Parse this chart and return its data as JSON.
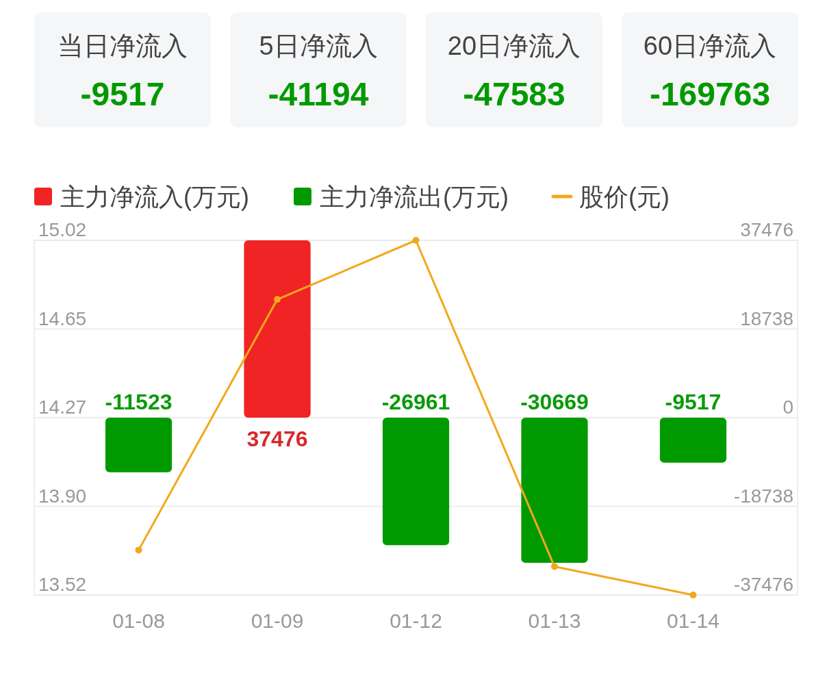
{
  "chart_data": [
    {
      "type": "other",
      "annotations": [
        "当日净流入",
        "-9517",
        "5日净流入",
        "-41194",
        "20日净流入",
        "-47583",
        "60日净流入",
        "-169763"
      ]
    },
    {
      "type": "bar",
      "categories": [
        "01-08",
        "01-09",
        "01-12",
        "01-13",
        "01-14"
      ],
      "series": [
        {
          "name": "主力净流入(万元)",
          "color": "#f02424",
          "axis": "y2",
          "values": [
            null,
            37476,
            null,
            null,
            null
          ],
          "value_labels": [
            null,
            "37476",
            null,
            null,
            null
          ]
        },
        {
          "name": "主力净流出(万元)",
          "color": "#009a00",
          "axis": "y2",
          "values": [
            -11523,
            null,
            -26961,
            -30669,
            -9517
          ],
          "value_labels": [
            "-11523",
            null,
            "-26961",
            "-30669",
            "-9517"
          ]
        },
        {
          "name": "股价(元)",
          "type": "line",
          "color": "#f2a81c",
          "marker": "circle",
          "values": [
            13.71,
            14.77,
            15.02,
            13.64,
            13.52
          ]
        }
      ],
      "ylim": [
        13.52,
        15.02
      ],
      "yticks": [
        13.52,
        {
          "value": 13.895,
          "label": "13.90"
        },
        14.27,
        {
          "value": 14.645,
          "label": "14.65"
        },
        15.02
      ],
      "y2lim": [
        -37476,
        37476
      ],
      "y2ticks": [
        -37476,
        -18738,
        0,
        18738,
        37476
      ],
      "grid": "y",
      "legend": "top"
    }
  ]
}
